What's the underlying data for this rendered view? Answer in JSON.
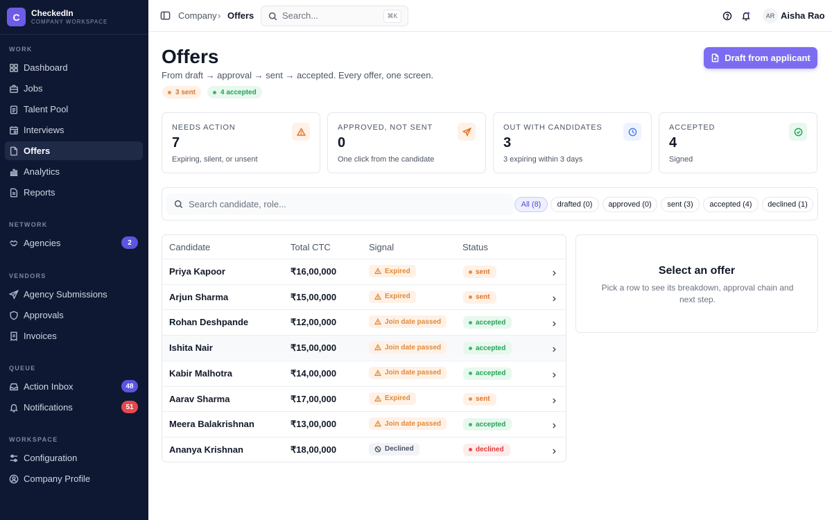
{
  "brand": {
    "logo_letter": "C",
    "name": "CheckedIn",
    "subtitle": "COMPANY WORKSPACE"
  },
  "sidebar": {
    "sections": [
      {
        "title": "WORK"
      },
      {
        "title": "NETWORK"
      },
      {
        "title": "VENDORS"
      },
      {
        "title": "QUEUE"
      },
      {
        "title": "WORKSPACE"
      }
    ],
    "items": [
      {
        "label": "Dashboard",
        "icon": "dashboard-icon"
      },
      {
        "label": "Jobs",
        "icon": "briefcase-icon"
      },
      {
        "label": "Talent Pool",
        "icon": "clipboard-icon"
      },
      {
        "label": "Interviews",
        "icon": "calendar-icon"
      },
      {
        "label": "Offers",
        "icon": "document-icon",
        "active": true
      },
      {
        "label": "Analytics",
        "icon": "bar-chart-icon"
      },
      {
        "label": "Reports",
        "icon": "report-icon"
      },
      {
        "label": "Agencies",
        "icon": "handshake-icon",
        "badge": "2",
        "badge_color": "#5b55e0"
      },
      {
        "label": "Agency Submissions",
        "icon": "send-icon"
      },
      {
        "label": "Approvals",
        "icon": "shield-icon"
      },
      {
        "label": "Invoices",
        "icon": "invoice-icon"
      },
      {
        "label": "Action Inbox",
        "icon": "inbox-icon",
        "badge": "48",
        "badge_color": "#5b55e0"
      },
      {
        "label": "Notifications",
        "icon": "bell-icon",
        "badge": "51",
        "badge_color": "#e5484d"
      },
      {
        "label": "Configuration",
        "icon": "sliders-icon"
      },
      {
        "label": "Company Profile",
        "icon": "user-circle-icon"
      }
    ]
  },
  "topbar": {
    "breadcrumb_parent": "Company",
    "breadcrumb_separator": "›",
    "breadcrumb_current": "Offers",
    "search_placeholder": "Search...",
    "search_shortcut": "⌘K",
    "user_initials": "AR",
    "user_name": "Aisha Rao"
  },
  "header": {
    "title": "Offers",
    "subtitle": "From draft → approval → sent → accepted. Every offer, one screen.",
    "pills": [
      {
        "label": "3 sent",
        "color": "#e0742b",
        "bg": "#fff1e6",
        "dot": "#f08a3e"
      },
      {
        "label": "4 accepted",
        "color": "#22a355",
        "bg": "#e8f8ee",
        "dot": "#2fbf6a"
      }
    ],
    "primary_button": "Draft from applicant",
    "accent": "#7c6cf2"
  },
  "stats": [
    {
      "label": "NEEDS ACTION",
      "value": "7",
      "desc": "Expiring, silent, or unsent",
      "icon": "warning-icon",
      "icon_color": "#e0742b",
      "icon_bg": "#fff1e6"
    },
    {
      "label": "APPROVED, NOT SENT",
      "value": "0",
      "desc": "One click from the candidate",
      "icon": "send-icon",
      "icon_color": "#e0742b",
      "icon_bg": "#fff1e6"
    },
    {
      "label": "OUT WITH CANDIDATES",
      "value": "3",
      "desc": "3 expiring within 3 days",
      "icon": "clock-icon",
      "icon_color": "#4f7be8",
      "icon_bg": "#eef3fe"
    },
    {
      "label": "ACCEPTED",
      "value": "4",
      "desc": "Signed",
      "icon": "check-circle-icon",
      "icon_color": "#22a355",
      "icon_bg": "#e8f8ee"
    }
  ],
  "filters": {
    "search_placeholder": "Search candidate, role...",
    "chips": [
      {
        "label": "All (8)",
        "active": true
      },
      {
        "label": "drafted (0)"
      },
      {
        "label": "approved (0)"
      },
      {
        "label": "sent (3)"
      },
      {
        "label": "accepted (4)"
      },
      {
        "label": "declined (1)"
      }
    ]
  },
  "table": {
    "columns": [
      "Candidate",
      "Total CTC",
      "Signal",
      "Status"
    ],
    "rows": [
      {
        "candidate": "Priya Kapoor",
        "ctc": "₹16,00,000",
        "signal": "Expired",
        "signal_type": "warn",
        "status": "sent"
      },
      {
        "candidate": "Arjun Sharma",
        "ctc": "₹15,00,000",
        "signal": "Expired",
        "signal_type": "warn",
        "status": "sent"
      },
      {
        "candidate": "Rohan Deshpande",
        "ctc": "₹12,00,000",
        "signal": "Join date passed",
        "signal_type": "warn",
        "status": "accepted"
      },
      {
        "candidate": "Ishita Nair",
        "ctc": "₹15,00,000",
        "signal": "Join date passed",
        "signal_type": "warn",
        "status": "accepted"
      },
      {
        "candidate": "Kabir Malhotra",
        "ctc": "₹14,00,000",
        "signal": "Join date passed",
        "signal_type": "warn",
        "status": "accepted"
      },
      {
        "candidate": "Aarav Sharma",
        "ctc": "₹17,00,000",
        "signal": "Expired",
        "signal_type": "warn",
        "status": "sent"
      },
      {
        "candidate": "Meera Balakrishnan",
        "ctc": "₹13,00,000",
        "signal": "Join date passed",
        "signal_type": "warn",
        "status": "accepted"
      },
      {
        "candidate": "Ananya Krishnan",
        "ctc": "₹18,00,000",
        "signal": "Declined",
        "signal_type": "neutral",
        "status": "declined"
      }
    ]
  },
  "detail": {
    "title": "Select an offer",
    "text": "Pick a row to see its breakdown, approval chain and next step."
  }
}
